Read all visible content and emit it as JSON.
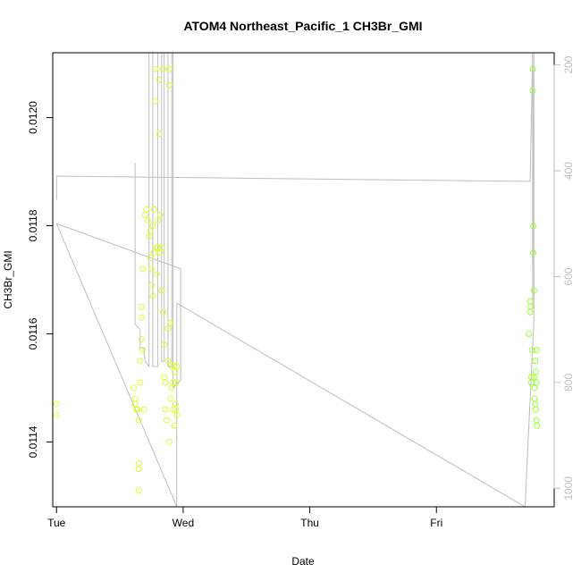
{
  "chart_data": {
    "type": "scatter",
    "title": "ATOM4 Northeast_Pacific_1 CH3Br_GMI",
    "xlabel": "Date",
    "ylabel": "CH3Br_GMI",
    "x_ticks": [
      "Tue",
      "Wed",
      "Thu",
      "Fri"
    ],
    "x_domain_days": [
      -0.03,
      3.93
    ],
    "y_ticks": [
      "0.0114",
      "0.0116",
      "0.0118",
      "0.0120"
    ],
    "ylim": [
      0.01128,
      0.01212
    ],
    "y2_ticks": [
      "200",
      "400",
      "600",
      "800",
      "1000"
    ],
    "y2lim": [
      1035,
      177
    ],
    "y2_reversed": true,
    "grid": false,
    "colors": {
      "early_points": "#d8ff33",
      "late_points": "#9aff33",
      "profile_line": "#bebebe",
      "axis": "#000000",
      "right_axis": "#bebebe"
    },
    "series": [
      {
        "kind": "scatter",
        "points": [
          [
            0.0,
            0.01147
          ],
          [
            0.0,
            0.01145
          ],
          [
            0.61,
            0.0115
          ],
          [
            0.62,
            0.01148
          ],
          [
            0.62,
            0.01147
          ],
          [
            0.63,
            0.01146
          ],
          [
            0.64,
            0.01146
          ],
          [
            0.65,
            0.01144
          ],
          [
            0.65,
            0.01136
          ],
          [
            0.65,
            0.01135
          ],
          [
            0.65,
            0.01131
          ],
          [
            0.66,
            0.01151
          ],
          [
            0.66,
            0.01155
          ],
          [
            0.67,
            0.01159
          ],
          [
            0.67,
            0.01163
          ],
          [
            0.67,
            0.01165
          ],
          [
            0.68,
            0.01157
          ],
          [
            0.68,
            0.01172
          ],
          [
            0.69,
            0.01146
          ],
          [
            0.7,
            0.01182
          ],
          [
            0.71,
            0.01183
          ],
          [
            0.72,
            0.01181
          ],
          [
            0.73,
            0.01178
          ],
          [
            0.74,
            0.01174
          ],
          [
            0.74,
            0.01179
          ],
          [
            0.75,
            0.01172
          ],
          [
            0.75,
            0.01169
          ],
          [
            0.76,
            0.01167
          ],
          [
            0.76,
            0.0118
          ],
          [
            0.77,
            0.01183
          ],
          [
            0.77,
            0.01175
          ],
          [
            0.78,
            0.01203
          ],
          [
            0.78,
            0.01209
          ],
          [
            0.79,
            0.01176
          ],
          [
            0.79,
            0.01171
          ],
          [
            0.8,
            0.01181
          ],
          [
            0.8,
            0.01176
          ],
          [
            0.81,
            0.01207
          ],
          [
            0.81,
            0.01197
          ],
          [
            0.82,
            0.01182
          ],
          [
            0.82,
            0.01175
          ],
          [
            0.83,
            0.01176
          ],
          [
            0.83,
            0.01168
          ],
          [
            0.84,
            0.01209
          ],
          [
            0.84,
            0.01164
          ],
          [
            0.85,
            0.01158
          ],
          [
            0.85,
            0.01152
          ],
          [
            0.86,
            0.01146
          ],
          [
            0.86,
            0.01151
          ],
          [
            0.87,
            0.01144
          ],
          [
            0.88,
            0.01161
          ],
          [
            0.88,
            0.01155
          ],
          [
            0.89,
            0.0114
          ],
          [
            0.89,
            0.01206
          ],
          [
            0.89,
            0.01209
          ],
          [
            0.9,
            0.01148
          ],
          [
            0.9,
            0.01162
          ],
          [
            0.91,
            0.0115
          ],
          [
            0.91,
            0.01154
          ],
          [
            0.92,
            0.01146
          ],
          [
            0.92,
            0.01151
          ],
          [
            0.93,
            0.01143
          ],
          [
            0.93,
            0.01154
          ],
          [
            0.94,
            0.01147
          ],
          [
            0.94,
            0.01146
          ],
          [
            0.935,
            0.01153
          ],
          [
            0.945,
            0.01151
          ],
          [
            0.95,
            0.01154
          ],
          [
            0.95,
            0.01145
          ]
        ]
      },
      {
        "kind": "scatter",
        "points": [
          [
            3.73,
            0.0116
          ],
          [
            3.74,
            0.01166
          ],
          [
            3.74,
            0.01164
          ],
          [
            3.745,
            0.01165
          ],
          [
            3.75,
            0.01152
          ],
          [
            3.75,
            0.01151
          ],
          [
            3.755,
            0.01157
          ],
          [
            3.76,
            0.01209
          ],
          [
            3.76,
            0.01205
          ],
          [
            3.765,
            0.01175
          ],
          [
            3.765,
            0.0118
          ],
          [
            3.77,
            0.01168
          ],
          [
            3.77,
            0.01152
          ],
          [
            3.775,
            0.0115
          ],
          [
            3.775,
            0.01148
          ],
          [
            3.78,
            0.01155
          ],
          [
            3.78,
            0.01147
          ],
          [
            3.785,
            0.01146
          ],
          [
            3.785,
            0.01153
          ],
          [
            3.79,
            0.01157
          ],
          [
            3.79,
            0.01151
          ],
          [
            3.79,
            0.01144
          ],
          [
            3.795,
            0.01143
          ]
        ]
      }
    ]
  }
}
